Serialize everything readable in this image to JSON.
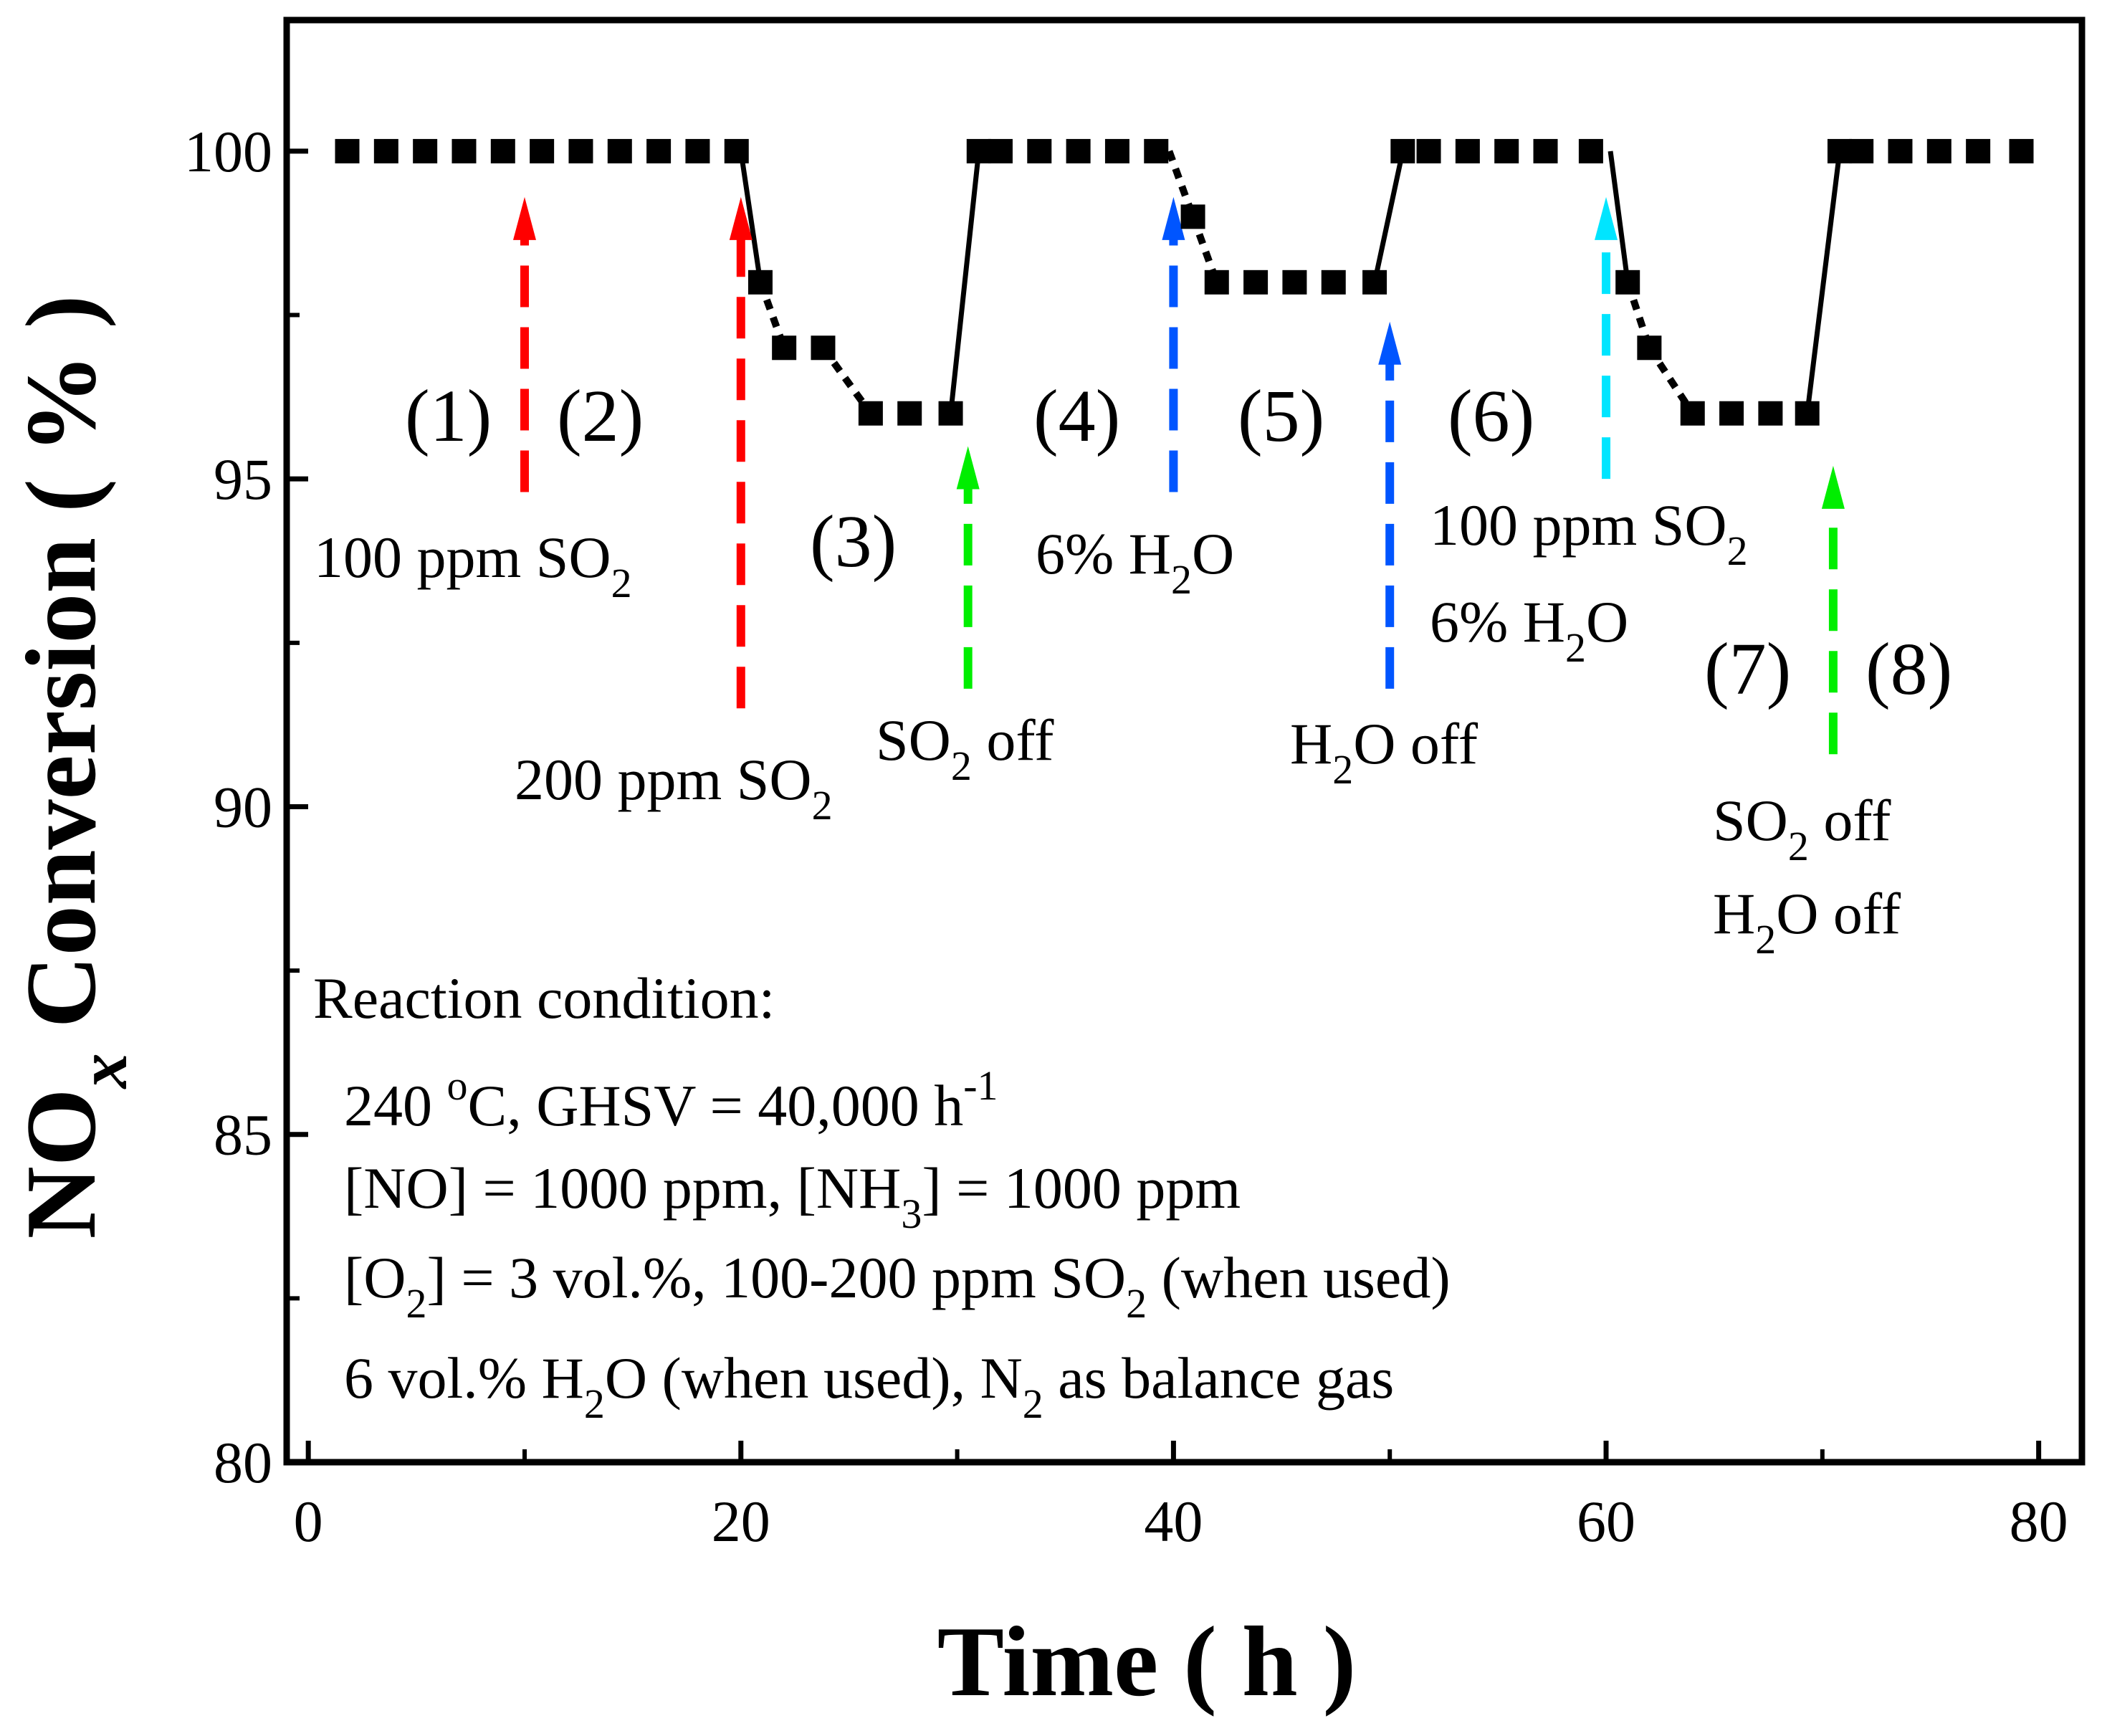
{
  "chart_data": {
    "type": "scatter",
    "title": "",
    "xlabel": "Time ( h )",
    "ylabel": {
      "main": "NO",
      "sub": "x",
      "rest": " Conversion ( % )"
    },
    "xlim": [
      -1,
      82
    ],
    "ylim": [
      80,
      102
    ],
    "xticks": [
      0,
      20,
      40,
      60,
      80
    ],
    "yticks": [
      80,
      85,
      90,
      95,
      100
    ],
    "series": [
      {
        "name": "NOx conversion",
        "marker": "square",
        "color": "#000000",
        "points": [
          [
            1.8,
            100
          ],
          [
            3.6,
            100
          ],
          [
            5.4,
            100
          ],
          [
            7.2,
            100
          ],
          [
            9,
            100
          ],
          [
            10.8,
            100
          ],
          [
            12.6,
            100
          ],
          [
            14.4,
            100
          ],
          [
            16.2,
            100
          ],
          [
            18,
            100
          ],
          [
            19.8,
            100
          ],
          [
            20.9,
            98
          ],
          [
            22,
            97
          ],
          [
            23.8,
            97
          ],
          [
            26,
            96
          ],
          [
            27.8,
            96
          ],
          [
            29.7,
            96
          ],
          [
            31,
            100
          ],
          [
            32,
            100
          ],
          [
            33.8,
            100
          ],
          [
            35.6,
            100
          ],
          [
            37.4,
            100
          ],
          [
            39.2,
            100
          ],
          [
            40.9,
            99
          ],
          [
            42,
            98
          ],
          [
            43.8,
            98
          ],
          [
            45.6,
            98
          ],
          [
            47.4,
            98
          ],
          [
            49.3,
            98
          ],
          [
            50.6,
            100
          ],
          [
            51.8,
            100
          ],
          [
            53.6,
            100
          ],
          [
            55.4,
            100
          ],
          [
            57.2,
            100
          ],
          [
            59.3,
            100
          ],
          [
            61,
            98
          ],
          [
            62,
            97
          ],
          [
            64,
            96
          ],
          [
            65.8,
            96
          ],
          [
            67.6,
            96
          ],
          [
            69.3,
            96
          ],
          [
            70.8,
            100
          ],
          [
            71.8,
            100
          ],
          [
            73.6,
            100
          ],
          [
            75.4,
            100
          ],
          [
            77.2,
            100
          ],
          [
            79.2,
            100
          ]
        ],
        "solid_connectors": [
          [
            [
              20,
              100
            ],
            [
              20.9,
              98
            ]
          ],
          [
            [
              29.7,
              96
            ],
            [
              31,
              100
            ]
          ],
          [
            [
              49.3,
              98
            ],
            [
              50.6,
              100
            ]
          ],
          [
            [
              60.2,
              100
            ],
            [
              61,
              98
            ]
          ],
          [
            [
              69.3,
              96
            ],
            [
              70.8,
              100
            ]
          ]
        ],
        "dotted_connectors": [
          [
            [
              20.9,
              98
            ],
            [
              22,
              97
            ]
          ],
          [
            [
              23.8,
              97
            ],
            [
              26,
              96
            ]
          ],
          [
            [
              39.8,
              100
            ],
            [
              40.9,
              99
            ]
          ],
          [
            [
              40.9,
              99
            ],
            [
              42,
              98
            ]
          ],
          [
            [
              61,
              98
            ],
            [
              62,
              97
            ]
          ],
          [
            [
              62,
              97
            ],
            [
              64,
              96
            ]
          ]
        ]
      }
    ],
    "event_arrows": [
      {
        "x": 10,
        "y_from": 94.8,
        "y_to": 99.3,
        "color": "#ff0000",
        "label": "100 ppm SO2"
      },
      {
        "x": 20,
        "y_from": 91.5,
        "y_to": 99.3,
        "color": "#ff0000",
        "label": "200 ppm SO2"
      },
      {
        "x": 30.5,
        "y_from": 91.8,
        "y_to": 95.5,
        "color": "#00ee00",
        "label": "SO2 off"
      },
      {
        "x": 40,
        "y_from": 94.8,
        "y_to": 99.3,
        "color": "#0055ff",
        "label": "6% H2O"
      },
      {
        "x": 50,
        "y_from": 91.8,
        "y_to": 97.4,
        "color": "#0055ff",
        "label": "H2O off"
      },
      {
        "x": 60,
        "y_from": 95,
        "y_to": 99.3,
        "color": "#00e5ff",
        "label": "100 ppm SO2 + 6% H2O"
      },
      {
        "x": 70.5,
        "y_from": 90.8,
        "y_to": 95.2,
        "color": "#00ee00",
        "label": "SO2 off, H2O off"
      }
    ],
    "segment_labels": [
      "(1)",
      "(2)",
      "(3)",
      "(4)",
      "(5)",
      "(6)",
      "(7)",
      "(8)"
    ],
    "annotations": {
      "so2_100": {
        "a": "100 ppm SO",
        "b": "2"
      },
      "so2_200": {
        "a": "200 ppm SO",
        "b": "2"
      },
      "so2_off": {
        "a": "SO",
        "b": "2",
        "c": " off"
      },
      "h2o_6": {
        "a": "6% H",
        "b": "2",
        "c": "O"
      },
      "h2o_off": {
        "a": "H",
        "b": "2",
        "c": "O off"
      },
      "so2_100_b": {
        "a": "100 ppm SO",
        "b": "2"
      },
      "h2o_6_b": {
        "a": "6%  H",
        "b": "2",
        "c": "O"
      },
      "so2_off_b": {
        "a": "SO",
        "b": "2",
        "c": " off"
      },
      "h2o_off_b": {
        "a": "H",
        "b": "2",
        "c": "O off"
      }
    },
    "reaction_condition": {
      "title": "Reaction condition:",
      "line1": {
        "a": "240 ",
        "b": "o",
        "c": "C, GHSV = 40,000 h",
        "d": "-1"
      },
      "line2": {
        "a": "[NO] = 1000 ppm, [NH",
        "b": "3",
        "c": "] = 1000 ppm"
      },
      "line3": {
        "a": "[O",
        "b": "2",
        "c": "] = 3 vol.%, 100-200 ppm SO",
        "d": "2",
        "e": " (when used)"
      },
      "line4": {
        "a": "6 vol.% H",
        "b": "2",
        "c": "O  (when used), N",
        "d": "2",
        "e": " as balance gas"
      }
    }
  }
}
